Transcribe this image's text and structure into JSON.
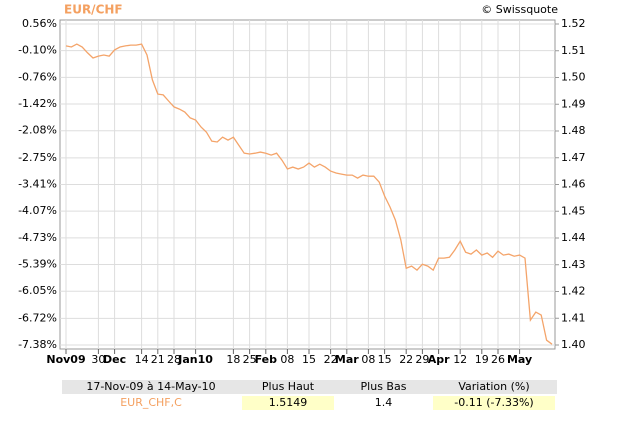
{
  "chart_data": {
    "type": "line",
    "title": "EUR/CHF",
    "source": "© Swissquote",
    "categories": [
      "Nov09",
      null,
      null,
      null,
      null,
      null,
      "30",
      null,
      null,
      "Dec",
      null,
      null,
      null,
      null,
      "14",
      null,
      null,
      "21",
      null,
      null,
      "28",
      null,
      null,
      null,
      "Jan10",
      null,
      null,
      null,
      null,
      null,
      null,
      "18",
      null,
      null,
      "25",
      null,
      null,
      "Feb",
      null,
      null,
      null,
      "08",
      null,
      null,
      null,
      "15",
      null,
      null,
      null,
      "22",
      null,
      null,
      "Mar",
      null,
      null,
      null,
      "08",
      null,
      null,
      "15",
      null,
      null,
      null,
      "22",
      null,
      null,
      "29",
      null,
      null,
      "Apr",
      null,
      null,
      null,
      "12",
      null,
      null,
      null,
      "19",
      null,
      null,
      "26",
      null,
      null,
      null,
      "May",
      null,
      null,
      null,
      null,
      null,
      null
    ],
    "series": [
      {
        "color": "#f4a46a",
        "axis": "y2",
        "values": [
          1.5118,
          1.5114,
          1.5125,
          1.5114,
          1.5092,
          1.5073,
          1.508,
          1.5084,
          1.508,
          1.5103,
          1.5114,
          1.5118,
          1.5121,
          1.5121,
          1.5125,
          1.5084,
          1.4991,
          1.4938,
          1.4935,
          1.4912,
          1.489,
          1.4882,
          1.4871,
          1.4849,
          1.4841,
          1.4815,
          1.4796,
          1.4762,
          1.4759,
          1.4777,
          1.4766,
          1.4777,
          1.4747,
          1.4717,
          1.4714,
          1.4717,
          1.4721,
          1.4717,
          1.471,
          1.4717,
          1.4691,
          1.4658,
          1.4665,
          1.4658,
          1.4665,
          1.468,
          1.4665,
          1.4676,
          1.4665,
          1.465,
          1.4643,
          1.4639,
          1.4635,
          1.4635,
          1.4624,
          1.4635,
          1.4631,
          1.4631,
          1.4609,
          1.4557,
          1.4516,
          1.4467,
          1.4393,
          1.4287,
          1.4295,
          1.428,
          1.4302,
          1.4295,
          1.428,
          1.4325,
          1.4325,
          1.4328,
          1.4355,
          1.4388,
          1.4347,
          1.434,
          1.4355,
          1.4336,
          1.4344,
          1.4328,
          1.4351,
          1.4336,
          1.434,
          1.4332,
          1.4336,
          1.4325,
          1.4093,
          1.4123,
          1.4112,
          1.4018,
          1.4003
        ]
      }
    ],
    "ylim": [
      -7.38,
      0.56
    ],
    "yticks": [
      {
        "value": 0.56,
        "label": "0.56%"
      },
      {
        "value": -0.1,
        "label": "-0.10%"
      },
      {
        "value": -0.76,
        "label": "-0.76%"
      },
      {
        "value": -1.42,
        "label": "-1.42%"
      },
      {
        "value": -2.08,
        "label": "-2.08%"
      },
      {
        "value": -2.75,
        "label": "-2.75%"
      },
      {
        "value": -3.41,
        "label": "-3.41%"
      },
      {
        "value": -4.07,
        "label": "-4.07%"
      },
      {
        "value": -4.73,
        "label": "-4.73%"
      },
      {
        "value": -5.39,
        "label": "-5.39%"
      },
      {
        "value": -6.05,
        "label": "-6.05%"
      },
      {
        "value": -6.72,
        "label": "-6.72%"
      },
      {
        "value": -7.38,
        "label": "-7.38%"
      }
    ],
    "y2lim": [
      1.4,
      1.52
    ],
    "y2ticks": [
      1.52,
      1.51,
      {
        "value": 1.5,
        "label": "1.50"
      },
      1.49,
      1.48,
      1.47,
      1.46,
      1.45,
      1.44,
      1.43,
      1.42,
      1.41,
      {
        "value": 1.4,
        "label": "1.40"
      }
    ],
    "grid": true
  },
  "table": {
    "headers": [
      "17-Nov-09 à 14-May-10",
      "Plus Haut",
      "Plus Bas",
      "Variation (%)"
    ],
    "rows": [
      [
        "EUR_CHF,C",
        "1.5149",
        "1.4",
        "-0.11 (-7.33%)"
      ]
    ]
  }
}
